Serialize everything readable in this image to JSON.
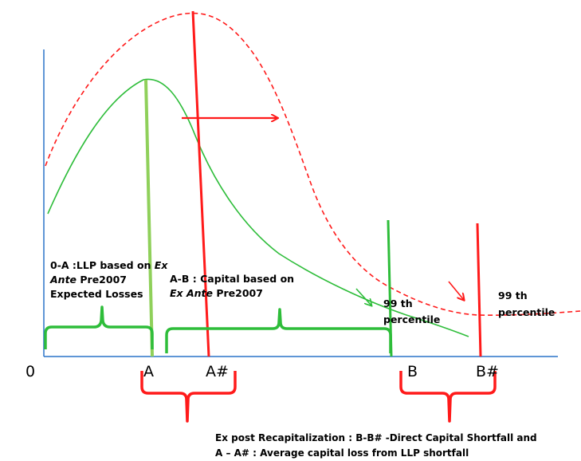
{
  "colors": {
    "ex_ante": "#2ebd3a",
    "ex_ante_marker": "#8fd05a",
    "ex_post": "#ff1a1a",
    "axis": "#2a74c8"
  },
  "axis_labels": {
    "origin": "0",
    "A": "A",
    "A_hash": "A#",
    "B": "B",
    "B_hash": "B#"
  },
  "annotations": {
    "llp": {
      "line1": "0-A :LLP based on ",
      "line1_em": "Ex",
      "line2_em": "Ante",
      "line2": " Pre2007",
      "line3": "Expected Losses"
    },
    "capital": {
      "line1": "A-B : Capital based on",
      "line2_em": "Ex Ante",
      "line2": " Pre2007"
    },
    "percentile_ex_ante": {
      "line1": "99 th",
      "line2": "percentile"
    },
    "percentile_ex_post": {
      "line1": "99 th",
      "line2": "percentile"
    }
  },
  "footnote": {
    "line1": "Ex post  Recapitalization  : B-B# -Direct Capital Shortfall  and",
    "line2": "A – A# : Average capital  loss from LLP shortfall"
  }
}
